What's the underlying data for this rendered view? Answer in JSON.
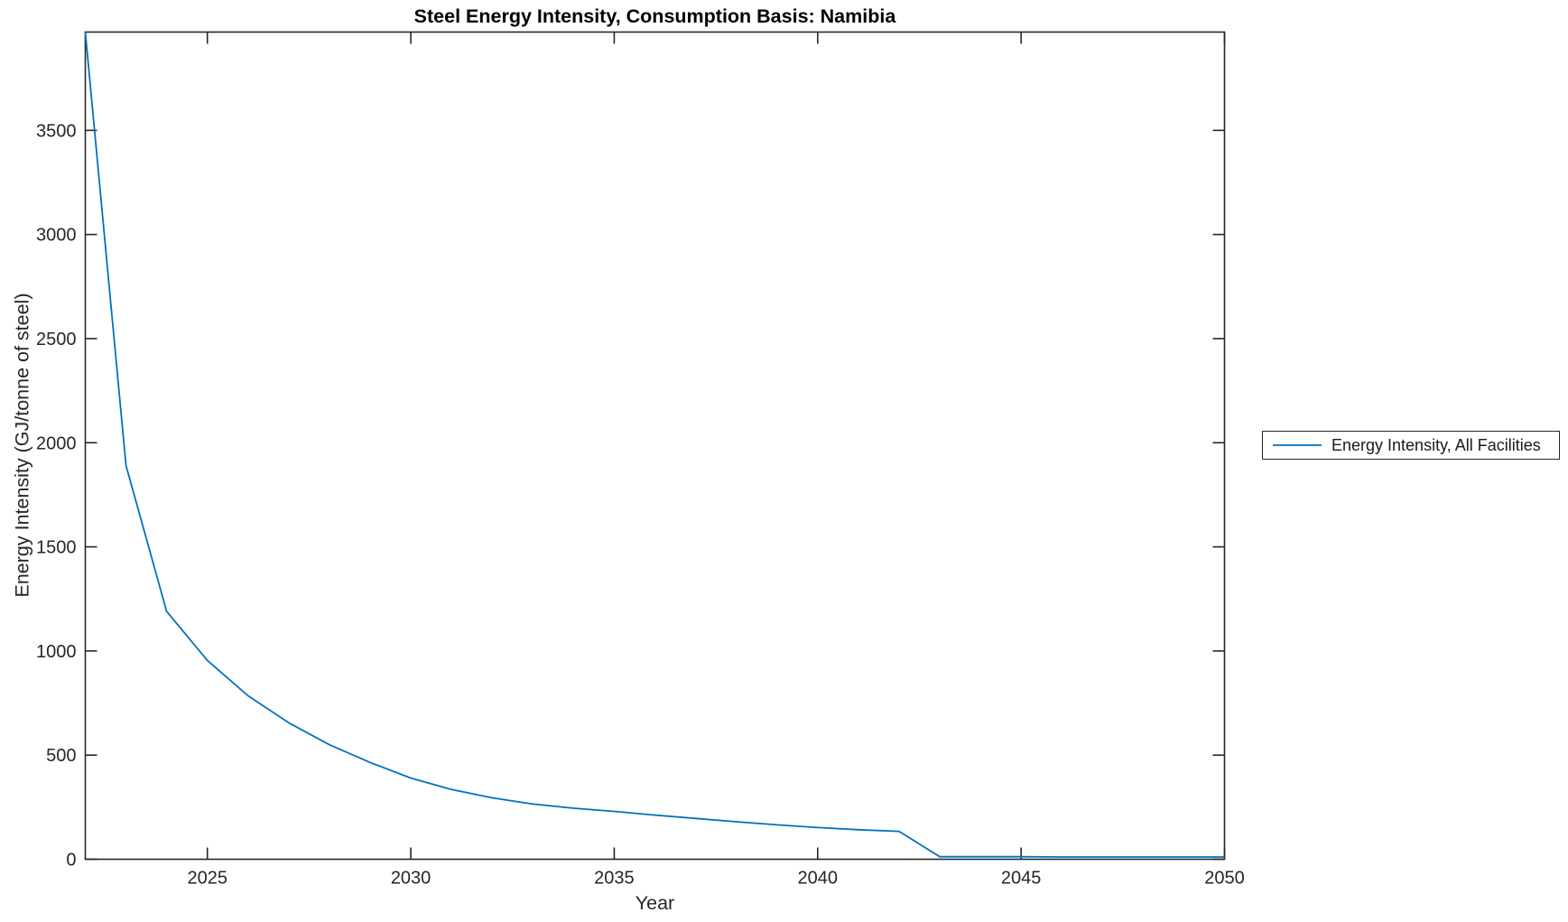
{
  "figure": {
    "background": "#ffffff"
  },
  "chart_data": {
    "type": "line",
    "title": "Steel Energy Intensity, Consumption Basis: Namibia",
    "xlabel": "Year",
    "ylabel": "Energy Intensity (GJ/tonne of steel)",
    "grid": false,
    "axis_color": "#262626",
    "xlim": [
      2022,
      2050
    ],
    "ylim": [
      0,
      3972
    ],
    "xticks": [
      2025,
      2030,
      2035,
      2040,
      2045,
      2050
    ],
    "yticks": [
      0,
      500,
      1000,
      1500,
      2000,
      2500,
      3000,
      3500
    ],
    "legend": {
      "entries": [
        "Energy Intensity, All Facilities"
      ],
      "position": "right-outside"
    },
    "series": [
      {
        "name": "Energy Intensity, All Facilities",
        "color": "#0072BD",
        "x": [
          2022,
          2023,
          2024,
          2025,
          2026,
          2027,
          2028,
          2029,
          2030,
          2031,
          2032,
          2033,
          2034,
          2035,
          2036,
          2037,
          2038,
          2039,
          2040,
          2041,
          2042,
          2043,
          2044,
          2045,
          2046,
          2047,
          2048,
          2049,
          2050
        ],
        "y": [
          3972,
          1890,
          1190,
          955,
          785,
          655,
          550,
          465,
          390,
          335,
          295,
          265,
          245,
          230,
          212,
          196,
          180,
          165,
          152,
          142,
          134,
          12,
          12,
          12,
          11,
          11,
          11,
          11,
          11
        ]
      }
    ]
  }
}
